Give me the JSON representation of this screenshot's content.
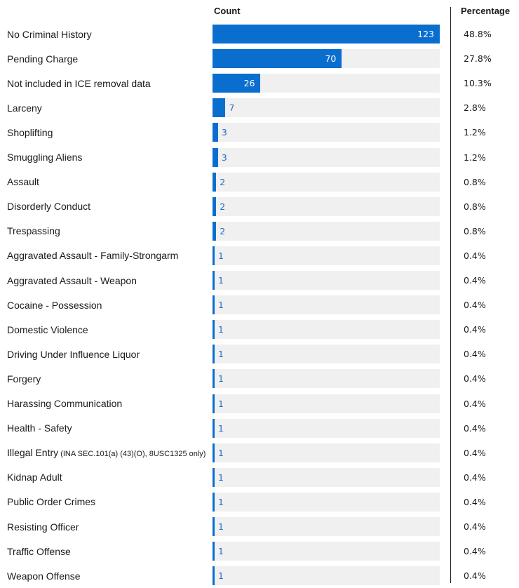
{
  "headers": {
    "count": "Count",
    "percentage": "Percentage"
  },
  "colors": {
    "bar": "#0a6ecf",
    "track": "#f0f0f0",
    "value_outside": "#1f6fc5"
  },
  "chart_data": {
    "type": "bar",
    "orientation": "horizontal",
    "xlim": [
      0,
      123
    ],
    "categories": [
      {
        "label": "No Criminal History",
        "sub": ""
      },
      {
        "label": "Pending Charge",
        "sub": ""
      },
      {
        "label": "Not included in ICE removal data",
        "sub": ""
      },
      {
        "label": "Larceny",
        "sub": ""
      },
      {
        "label": "Shoplifting",
        "sub": ""
      },
      {
        "label": "Smuggling Aliens",
        "sub": ""
      },
      {
        "label": "Assault",
        "sub": ""
      },
      {
        "label": "Disorderly Conduct",
        "sub": ""
      },
      {
        "label": "Trespassing",
        "sub": ""
      },
      {
        "label": "Aggravated Assault - Family-Strongarm",
        "sub": ""
      },
      {
        "label": "Aggravated Assault - Weapon",
        "sub": ""
      },
      {
        "label": "Cocaine - Possession",
        "sub": ""
      },
      {
        "label": "Domestic Violence",
        "sub": ""
      },
      {
        "label": "Driving Under Influence Liquor",
        "sub": ""
      },
      {
        "label": "Forgery",
        "sub": ""
      },
      {
        "label": "Harassing Communication",
        "sub": ""
      },
      {
        "label": "Health - Safety",
        "sub": ""
      },
      {
        "label": "Illegal Entry",
        "sub": "(INA SEC.101(a) (43)(O), 8USC1325 only)"
      },
      {
        "label": "Kidnap Adult",
        "sub": ""
      },
      {
        "label": "Public Order Crimes",
        "sub": ""
      },
      {
        "label": "Resisting Officer",
        "sub": ""
      },
      {
        "label": "Traffic Offense",
        "sub": ""
      },
      {
        "label": "Weapon Offense",
        "sub": ""
      }
    ],
    "series": [
      {
        "values": [
          123,
          70,
          26,
          7,
          3,
          3,
          2,
          2,
          2,
          1,
          1,
          1,
          1,
          1,
          1,
          1,
          1,
          1,
          1,
          1,
          1,
          1,
          1
        ]
      }
    ],
    "percentages": [
      "48.8%",
      "27.8%",
      "10.3%",
      "2.8%",
      "1.2%",
      "1.2%",
      "0.8%",
      "0.8%",
      "0.8%",
      "0.4%",
      "0.4%",
      "0.4%",
      "0.4%",
      "0.4%",
      "0.4%",
      "0.4%",
      "0.4%",
      "0.4%",
      "0.4%",
      "0.4%",
      "0.4%",
      "0.4%",
      "0.4%"
    ]
  }
}
